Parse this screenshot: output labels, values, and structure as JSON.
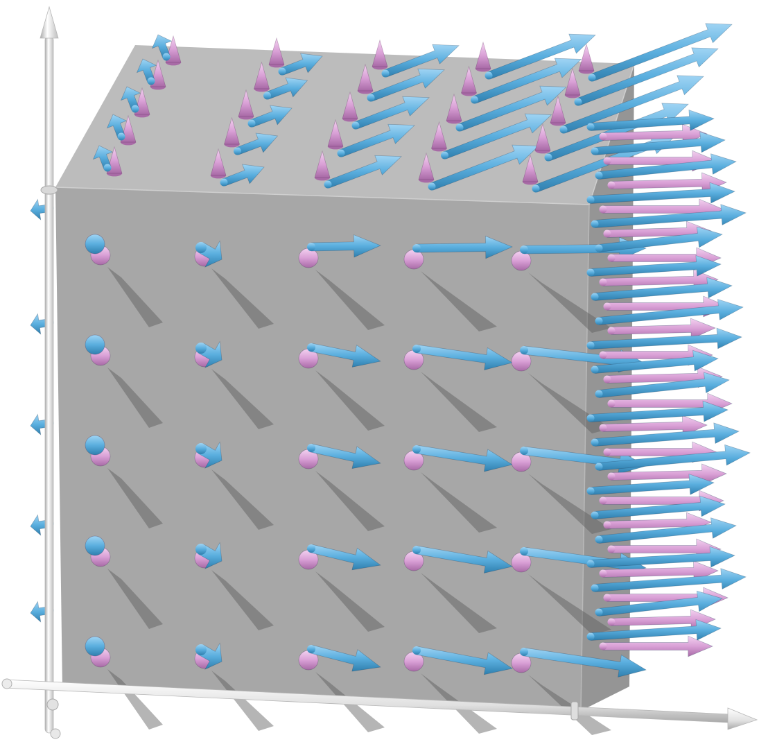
{
  "scene": {
    "type": "3d-vector-field",
    "background": "#ffffff",
    "box": {
      "face": "#9e9e9e",
      "top": "#b4b4b4",
      "side": "#8c8c8c",
      "edge": "#cfcfcf"
    },
    "axes": {
      "color": "#e6e6e6",
      "shade": "#b0b0b0",
      "count": 2
    },
    "colors": {
      "field_a": "#5aaede",
      "field_a_dark": "#2f7fae",
      "field_b": "#d9a0d6",
      "field_b_dark": "#a86aa6",
      "shadow": "#5a5a5a"
    },
    "fields": [
      "field_a",
      "field_b"
    ],
    "grid": {
      "rows": 5,
      "cols": 5,
      "top_rows": 5,
      "right_column_arrows": 22
    }
  }
}
